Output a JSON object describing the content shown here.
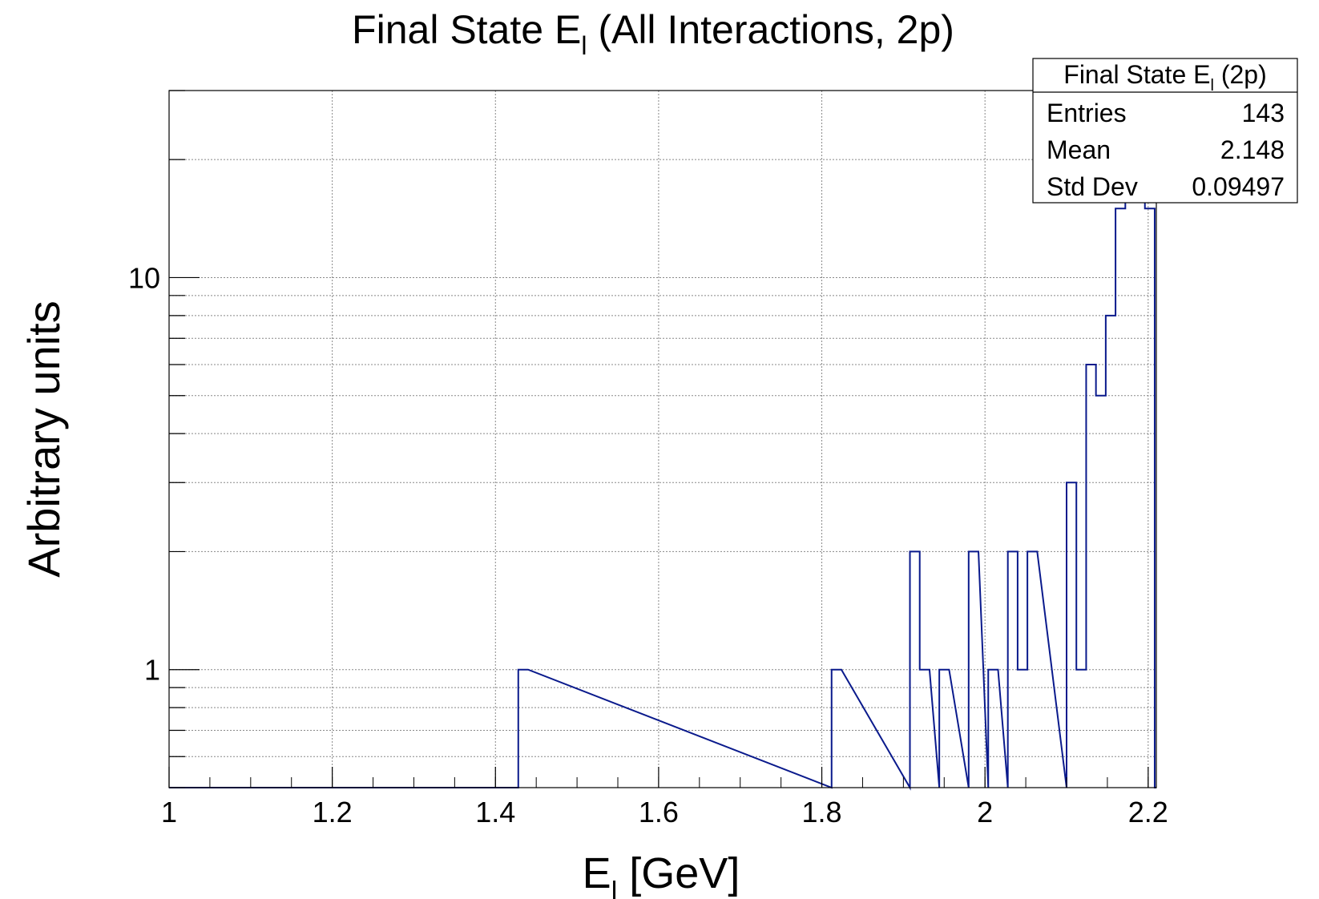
{
  "chart_data": {
    "type": "histogram",
    "title": {
      "main": "Final State E",
      "sub": "l",
      "rest": " (All Interactions, 2p)"
    },
    "xlabel": {
      "main": "E",
      "sub": "l",
      "rest": " [GeV]"
    },
    "ylabel": "Arbitrary units",
    "x_scale": "linear",
    "y_scale": "log",
    "xlim": [
      1.0,
      2.21
    ],
    "ylim": [
      0.5,
      30
    ],
    "grid": true,
    "x_ticks": [
      {
        "value": 1.0,
        "label": "1"
      },
      {
        "value": 1.2,
        "label": "1.2"
      },
      {
        "value": 1.4,
        "label": "1.4"
      },
      {
        "value": 1.6,
        "label": "1.6"
      },
      {
        "value": 1.8,
        "label": "1.8"
      },
      {
        "value": 2.0,
        "label": "2"
      },
      {
        "value": 2.2,
        "label": "2.2"
      }
    ],
    "y_ticks": [
      {
        "value": 1,
        "label": "1"
      },
      {
        "value": 10,
        "label": "10"
      }
    ],
    "bin_width": 0.012,
    "bins": [
      {
        "x_low": 1.428,
        "x_high": 1.44,
        "count": 1
      },
      {
        "x_low": 1.812,
        "x_high": 1.824,
        "count": 1
      },
      {
        "x_low": 1.908,
        "x_high": 1.92,
        "count": 2
      },
      {
        "x_low": 1.92,
        "x_high": 1.932,
        "count": 1
      },
      {
        "x_low": 1.944,
        "x_high": 1.956,
        "count": 1
      },
      {
        "x_low": 1.98,
        "x_high": 1.992,
        "count": 2
      },
      {
        "x_low": 2.004,
        "x_high": 2.016,
        "count": 1
      },
      {
        "x_low": 2.028,
        "x_high": 2.04,
        "count": 2
      },
      {
        "x_low": 2.04,
        "x_high": 2.052,
        "count": 1
      },
      {
        "x_low": 2.052,
        "x_high": 2.064,
        "count": 2
      },
      {
        "x_low": 2.1,
        "x_high": 2.112,
        "count": 3
      },
      {
        "x_low": 2.112,
        "x_high": 2.124,
        "count": 1
      },
      {
        "x_low": 2.124,
        "x_high": 2.136,
        "count": 6
      },
      {
        "x_low": 2.136,
        "x_high": 2.148,
        "count": 5
      },
      {
        "x_low": 2.148,
        "x_high": 2.16,
        "count": 8
      },
      {
        "x_low": 2.16,
        "x_high": 2.172,
        "count": 15
      },
      {
        "x_low": 2.172,
        "x_high": 2.184,
        "count": 24
      },
      {
        "x_low": 2.184,
        "x_high": 2.196,
        "count": 29
      },
      {
        "x_low": 2.196,
        "x_high": 2.208,
        "count": 15
      }
    ],
    "line_color": "#0a1a8c",
    "stats_box": {
      "title": {
        "main": "Final State E",
        "sub": "l",
        "rest": " (2p)"
      },
      "rows": [
        {
          "label": "Entries",
          "value": "143"
        },
        {
          "label": "Mean",
          "value": "2.148"
        },
        {
          "label": "Std Dev",
          "value": "0.09497"
        }
      ]
    }
  }
}
